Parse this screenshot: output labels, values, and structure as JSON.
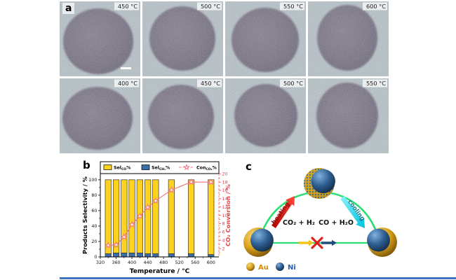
{
  "figure": {
    "panel_a_label": "a",
    "panel_b_label": "b",
    "panel_c_label": "c"
  },
  "panel_a": {
    "background_color": "#b6c3c9",
    "particle_color": "#746d80",
    "tiles": [
      {
        "temp": "450 °C"
      },
      {
        "temp": "500 °C"
      },
      {
        "temp": "550 °C"
      },
      {
        "temp": "600 °C"
      },
      {
        "temp": "400 °C"
      },
      {
        "temp": "450 °C"
      },
      {
        "temp": "500 °C"
      },
      {
        "temp": "550 °C"
      }
    ]
  },
  "chart_data": {
    "type": "bar",
    "x": [
      340,
      360,
      380,
      400,
      420,
      440,
      460,
      500,
      550,
      600
    ],
    "series": [
      {
        "name": "Sel-CH4%",
        "type": "bar",
        "stack": true,
        "color": "#3a6ea5",
        "values": [
          4,
          5,
          5,
          5,
          5,
          4,
          4,
          4,
          4,
          3
        ]
      },
      {
        "name": "Sel-CO%",
        "type": "bar",
        "stack": true,
        "color": "#ffd21e",
        "values": [
          96,
          95,
          95,
          95,
          95,
          96,
          96,
          96,
          96,
          97
        ]
      },
      {
        "name": "Con-CO2%",
        "type": "line",
        "axis": "right",
        "color": "#f4777f",
        "values": [
          2.8,
          2.9,
          4.8,
          7.8,
          9.8,
          11.9,
          13.5,
          16.1,
          18,
          18
        ]
      }
    ],
    "xlabel": "Temperature / °C",
    "ylabel_left": "Products Selectivity / %",
    "ylabel_right": "CO₂ Conversion / %",
    "xlim": [
      320,
      620
    ],
    "xticks": [
      320,
      360,
      400,
      440,
      480,
      520,
      560,
      600
    ],
    "yticks_left": [
      0,
      20,
      40,
      60,
      80,
      100
    ],
    "yticks_right": [
      2,
      4,
      6,
      8,
      10,
      12,
      14,
      16,
      18,
      20
    ],
    "legend": [
      {
        "swatch": "bar",
        "color": "#ffd21e",
        "main": "Sel",
        "sub": "CO",
        "end": "%"
      },
      {
        "swatch": "bar",
        "color": "#3a6ea5",
        "main": "Sel",
        "sub": "CH₄",
        "end": "%"
      },
      {
        "swatch": "line",
        "color": "#f4777f",
        "main": "Con",
        "sub": "CO₂",
        "end": "%"
      }
    ],
    "grid": false,
    "legend_position": "top"
  },
  "panel_c": {
    "heating_label": "heating",
    "cooling_label": "cooling",
    "reaction_left": "CO₂ + H₂",
    "reaction_right": "CO + H₂O",
    "legend": [
      {
        "label": "Au",
        "text_color": "#d98c00"
      },
      {
        "label": "Ni",
        "text_color": "#2b5ea7"
      }
    ],
    "colors": {
      "arc": "#2bdf72",
      "heating_arrow_dark": "#8f1010",
      "cooling_text": "#0c7d8f",
      "gold": "#d9a21b",
      "navy": "#1f4e79",
      "cross": "#e02020",
      "axis_red": "#e8404a"
    }
  }
}
